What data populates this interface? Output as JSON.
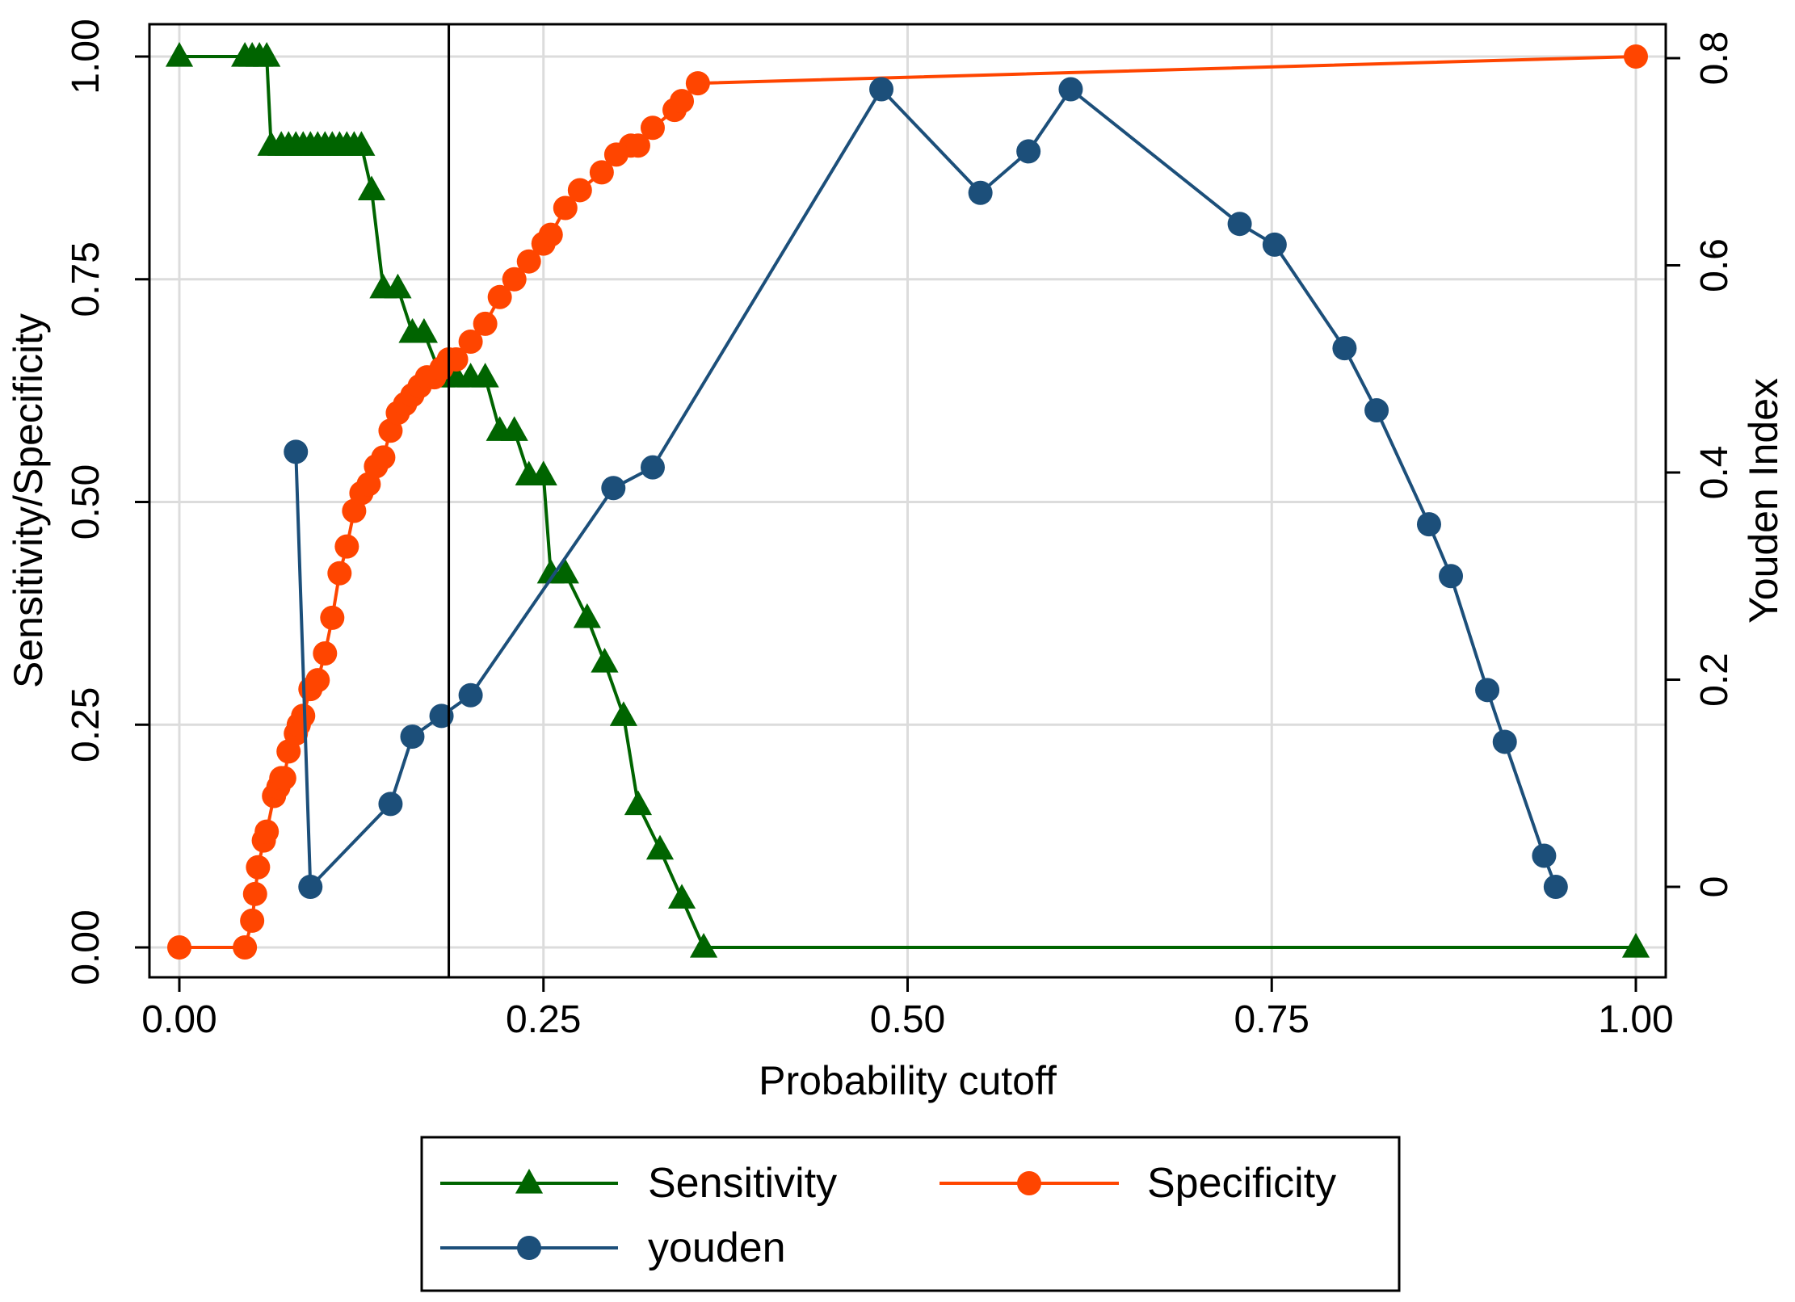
{
  "chart_data": {
    "type": "line",
    "xlabel": "Probability cutoff",
    "ylabel_left": "Sensitivity/Specificity",
    "ylabel_right": "Youden Index",
    "xlim": [
      0,
      1
    ],
    "ylim_left": [
      0,
      1
    ],
    "ylim_right": [
      -0.07,
      0.8
    ],
    "x_ticks": [
      "0.00",
      "0.25",
      "0.50",
      "0.75",
      "1.00"
    ],
    "y_left_ticks": [
      "0.00",
      "0.25",
      "0.50",
      "0.75",
      "1.00"
    ],
    "y_right_ticks": [
      "0",
      "0.2",
      "0.4",
      "0.6",
      "0.8"
    ],
    "grid": true,
    "cutoff_line_x": 0.185,
    "legend_position": "bottom",
    "series": [
      {
        "name": "Sensitivity",
        "axis": "left",
        "marker": "triangle",
        "color": "#006400",
        "x": [
          0,
          0.045,
          0.05,
          0.055,
          0.06,
          0.063,
          0.07,
          0.075,
          0.08,
          0.085,
          0.09,
          0.095,
          0.1,
          0.105,
          0.11,
          0.115,
          0.12,
          0.125,
          0.132,
          0.14,
          0.15,
          0.16,
          0.168,
          0.18,
          0.19,
          0.2,
          0.21,
          0.22,
          0.23,
          0.24,
          0.25,
          0.255,
          0.265,
          0.28,
          0.292,
          0.305,
          0.315,
          0.33,
          0.345,
          0.36,
          1.0
        ],
        "y": [
          1,
          1,
          1,
          1,
          1,
          0.9,
          0.9,
          0.9,
          0.9,
          0.9,
          0.9,
          0.9,
          0.9,
          0.9,
          0.9,
          0.9,
          0.9,
          0.9,
          0.85,
          0.74,
          0.74,
          0.69,
          0.69,
          0.64,
          0.64,
          0.64,
          0.64,
          0.58,
          0.58,
          0.53,
          0.53,
          0.42,
          0.42,
          0.37,
          0.32,
          0.26,
          0.16,
          0.11,
          0.055,
          0,
          0
        ]
      },
      {
        "name": "Specificity",
        "axis": "left",
        "marker": "circle",
        "color": "#FF4500",
        "x": [
          0,
          0.045,
          0.05,
          0.052,
          0.054,
          0.058,
          0.06,
          0.065,
          0.068,
          0.07,
          0.072,
          0.075,
          0.08,
          0.082,
          0.085,
          0.09,
          0.095,
          0.1,
          0.105,
          0.11,
          0.115,
          0.12,
          0.125,
          0.13,
          0.135,
          0.14,
          0.145,
          0.15,
          0.155,
          0.16,
          0.165,
          0.17,
          0.175,
          0.18,
          0.185,
          0.19,
          0.2,
          0.21,
          0.22,
          0.23,
          0.24,
          0.25,
          0.255,
          0.265,
          0.275,
          0.29,
          0.3,
          0.31,
          0.315,
          0.325,
          0.34,
          0.345,
          0.356,
          1.0
        ],
        "y": [
          0,
          0,
          0.03,
          0.06,
          0.09,
          0.12,
          0.13,
          0.17,
          0.18,
          0.19,
          0.19,
          0.22,
          0.24,
          0.25,
          0.26,
          0.29,
          0.3,
          0.33,
          0.37,
          0.42,
          0.45,
          0.49,
          0.51,
          0.52,
          0.54,
          0.55,
          0.58,
          0.6,
          0.61,
          0.62,
          0.63,
          0.64,
          0.64,
          0.65,
          0.66,
          0.66,
          0.68,
          0.7,
          0.73,
          0.75,
          0.77,
          0.79,
          0.8,
          0.83,
          0.85,
          0.87,
          0.89,
          0.9,
          0.9,
          0.92,
          0.94,
          0.95,
          0.97,
          1.0
        ]
      },
      {
        "name": "youden",
        "axis": "right",
        "marker": "circle",
        "color": "#1C4F7A",
        "x": [
          0.08,
          0.09,
          0.145,
          0.16,
          0.18,
          0.2,
          0.298,
          0.325,
          0.482,
          0.55,
          0.583,
          0.612,
          0.728,
          0.752,
          0.8,
          0.822,
          0.858,
          0.873,
          0.898,
          0.91,
          0.937,
          0.945
        ],
        "y": [
          0.42,
          0.0,
          0.08,
          0.145,
          0.165,
          0.185,
          0.385,
          0.405,
          0.77,
          0.67,
          0.71,
          0.77,
          0.64,
          0.62,
          0.52,
          0.46,
          0.35,
          0.3,
          0.19,
          0.14,
          0.03,
          0.0
        ]
      }
    ]
  },
  "legend": {
    "items": [
      {
        "label": "Sensitivity"
      },
      {
        "label": "Specificity"
      },
      {
        "label": "youden"
      }
    ]
  }
}
